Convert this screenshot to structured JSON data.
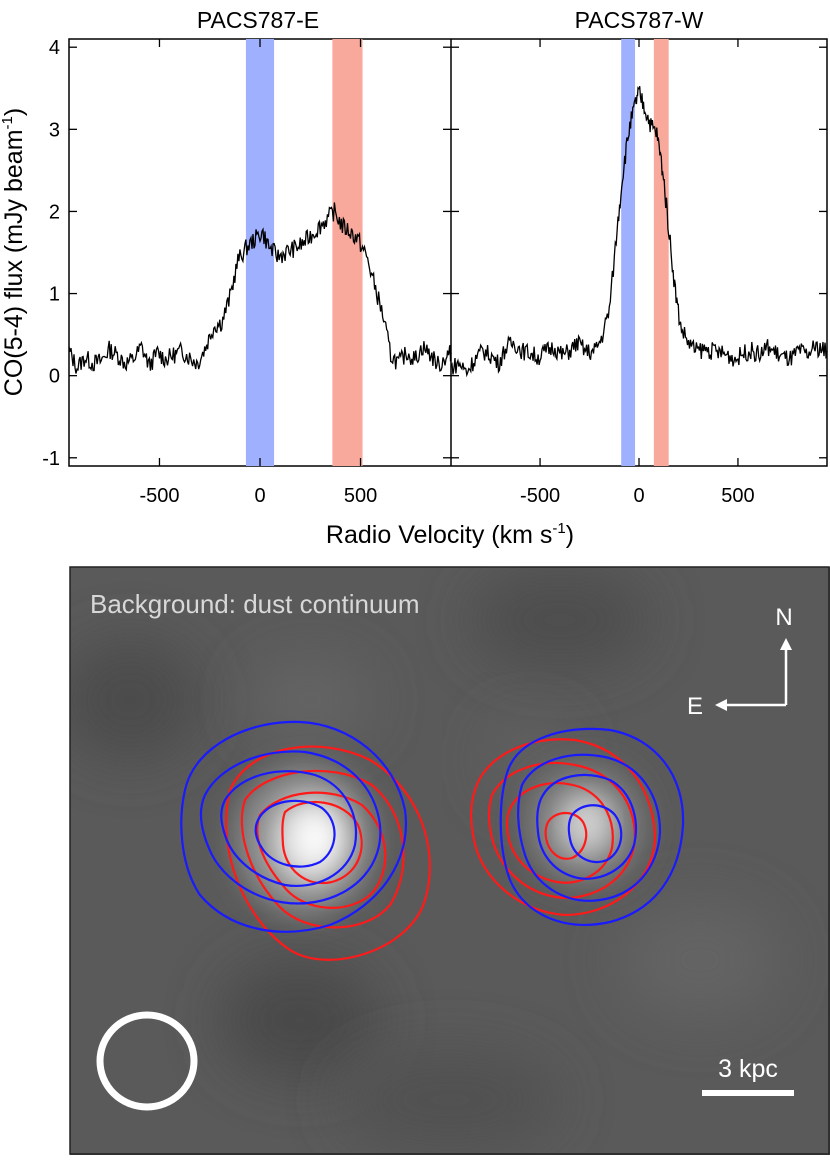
{
  "chart_data": [
    {
      "type": "line",
      "title": "PACS787-E",
      "xlabel": "Radio Velocity (km s",
      "xlabel_sup": "-1",
      "xlabel_end": ")",
      "ylabel": "CO(5-4) flux (mJy beam",
      "ylabel_sup": "-1",
      "ylabel_end": ")",
      "xlim": [
        -950,
        950
      ],
      "ylim": [
        -1.1,
        4.1
      ],
      "x_ticks": [
        -500,
        0,
        500
      ],
      "x_tick_labels": [
        "-500",
        "0",
        "500"
      ],
      "y_ticks": [
        -1,
        0,
        1,
        2,
        3,
        4
      ],
      "y_tick_labels": [
        "-1",
        "0",
        "1",
        "2",
        "3",
        "4"
      ],
      "bands": [
        {
          "name": "blue-channel",
          "range": [
            -70,
            70
          ],
          "color": "#9fb0ff"
        },
        {
          "name": "red-channel",
          "range": [
            360,
            510
          ],
          "color": "#f9a99c"
        }
      ],
      "series": [
        {
          "name": "PACS787-E spectrum",
          "color": "#000000",
          "x": [
            -950,
            -910,
            -870,
            -830,
            -790,
            -750,
            -710,
            -670,
            -630,
            -590,
            -550,
            -510,
            -470,
            -430,
            -390,
            -350,
            -310,
            -270,
            -230,
            -190,
            -150,
            -110,
            -70,
            -30,
            10,
            50,
            90,
            130,
            170,
            210,
            250,
            290,
            330,
            370,
            410,
            450,
            490,
            530,
            570,
            610,
            650,
            690,
            730,
            770,
            810,
            850,
            890,
            930,
            950
          ],
          "y": [
            0.3,
            0.1,
            0.22,
            0.15,
            0.18,
            0.32,
            0.25,
            0.15,
            0.2,
            0.35,
            0.12,
            0.28,
            0.2,
            0.25,
            0.3,
            0.22,
            0.15,
            0.35,
            0.6,
            0.65,
            0.95,
            1.4,
            1.55,
            1.65,
            1.75,
            1.55,
            1.45,
            1.5,
            1.55,
            1.6,
            1.7,
            1.8,
            1.9,
            2.0,
            1.82,
            1.75,
            1.65,
            1.45,
            1.1,
            0.75,
            0.25,
            0.15,
            0.28,
            0.2,
            0.35,
            0.25,
            0.12,
            0.25,
            0.28
          ]
        }
      ]
    },
    {
      "type": "line",
      "title": "PACS787-W",
      "xlim": [
        -950,
        950
      ],
      "ylim": [
        -1.1,
        4.1
      ],
      "x_ticks": [
        -500,
        0,
        500
      ],
      "x_tick_labels": [
        "-500",
        "0",
        "500"
      ],
      "bands": [
        {
          "name": "blue-channel",
          "range": [
            -90,
            -20
          ],
          "color": "#9fb0ff"
        },
        {
          "name": "red-channel",
          "range": [
            75,
            150
          ],
          "color": "#f9a99c"
        }
      ],
      "series": [
        {
          "name": "PACS787-W spectrum",
          "color": "#000000",
          "x": [
            -950,
            -910,
            -870,
            -830,
            -790,
            -750,
            -710,
            -670,
            -630,
            -590,
            -550,
            -510,
            -470,
            -430,
            -390,
            -350,
            -310,
            -270,
            -230,
            -190,
            -150,
            -110,
            -80,
            -50,
            -20,
            0,
            30,
            60,
            90,
            120,
            150,
            180,
            210,
            250,
            290,
            330,
            370,
            410,
            450,
            490,
            530,
            570,
            610,
            650,
            690,
            730,
            770,
            810,
            850,
            890,
            930,
            950
          ],
          "y": [
            0.1,
            0.15,
            0.05,
            0.2,
            0.3,
            0.25,
            0.15,
            0.35,
            0.4,
            0.3,
            0.28,
            0.22,
            0.3,
            0.35,
            0.25,
            0.3,
            0.4,
            0.3,
            0.28,
            0.45,
            0.8,
            1.8,
            2.5,
            3.0,
            3.3,
            3.45,
            3.25,
            3.05,
            2.95,
            2.5,
            1.8,
            1.1,
            0.6,
            0.4,
            0.3,
            0.32,
            0.3,
            0.28,
            0.25,
            0.2,
            0.28,
            0.3,
            0.25,
            0.35,
            0.28,
            0.22,
            0.2,
            0.3,
            0.25,
            0.35,
            0.32,
            0.3
          ]
        }
      ]
    }
  ],
  "image_panel": {
    "annotation": "Background: dust continuum",
    "compass": {
      "north": "N",
      "east": "E"
    },
    "scale_bar": "3 kpc",
    "contour_colors": {
      "blue": "#1a1aff",
      "red": "#ff1a1a"
    },
    "background_color": "#5a5a5a",
    "beam_color": "#ffffff"
  }
}
